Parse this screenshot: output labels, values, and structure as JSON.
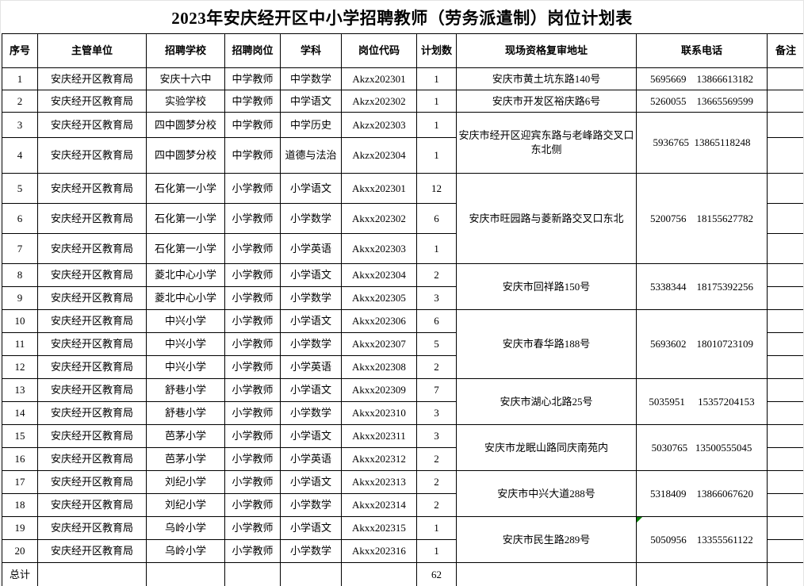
{
  "title": "2023年安庆经开区中小学招聘教师（劳务派遣制）岗位计划表",
  "colors": {
    "border": "#000000",
    "background": "#ffffff",
    "text": "#000000",
    "comment_marker": "#008000"
  },
  "table": {
    "headers": [
      "序号",
      "主管单位",
      "招聘学校",
      "招聘岗位",
      "学科",
      "岗位代码",
      "计划数",
      "现场资格复审地址",
      "联系电话",
      "备注"
    ],
    "rows": [
      {
        "no": "1",
        "unit": "安庆经开区教育局",
        "school": "安庆十六中",
        "post": "中学教师",
        "subject": "中学数学",
        "code": "Akzx202301",
        "count": "1",
        "remark": ""
      },
      {
        "no": "2",
        "unit": "安庆经开区教育局",
        "school": "实验学校",
        "post": "中学教师",
        "subject": "中学语文",
        "code": "Akzx202302",
        "count": "1",
        "remark": ""
      },
      {
        "no": "3",
        "unit": "安庆经开区教育局",
        "school": "四中圆梦分校",
        "post": "中学教师",
        "subject": "中学历史",
        "code": "Akzx202303",
        "count": "1",
        "remark": ""
      },
      {
        "no": "4",
        "unit": "安庆经开区教育局",
        "school": "四中圆梦分校",
        "post": "中学教师",
        "subject": "道德与法治",
        "code": "Akzx202304",
        "count": "1",
        "remark": ""
      },
      {
        "no": "5",
        "unit": "安庆经开区教育局",
        "school": "石化第一小学",
        "post": "小学教师",
        "subject": "小学语文",
        "code": "Akxx202301",
        "count": "12",
        "remark": ""
      },
      {
        "no": "6",
        "unit": "安庆经开区教育局",
        "school": "石化第一小学",
        "post": "小学教师",
        "subject": "小学数学",
        "code": "Akxx202302",
        "count": "6",
        "remark": ""
      },
      {
        "no": "7",
        "unit": "安庆经开区教育局",
        "school": "石化第一小学",
        "post": "小学教师",
        "subject": "小学英语",
        "code": "Akxx202303",
        "count": "1",
        "remark": ""
      },
      {
        "no": "8",
        "unit": "安庆经开区教育局",
        "school": "菱北中心小学",
        "post": "小学教师",
        "subject": "小学语文",
        "code": "Akxx202304",
        "count": "2",
        "remark": ""
      },
      {
        "no": "9",
        "unit": "安庆经开区教育局",
        "school": "菱北中心小学",
        "post": "小学教师",
        "subject": "小学数学",
        "code": "Akxx202305",
        "count": "3",
        "remark": ""
      },
      {
        "no": "10",
        "unit": "安庆经开区教育局",
        "school": "中兴小学",
        "post": "小学教师",
        "subject": "小学语文",
        "code": "Akxx202306",
        "count": "6",
        "remark": ""
      },
      {
        "no": "11",
        "unit": "安庆经开区教育局",
        "school": "中兴小学",
        "post": "小学教师",
        "subject": "小学数学",
        "code": "Akxx202307",
        "count": "5",
        "remark": ""
      },
      {
        "no": "12",
        "unit": "安庆经开区教育局",
        "school": "中兴小学",
        "post": "小学教师",
        "subject": "小学英语",
        "code": "Akxx202308",
        "count": "2",
        "remark": ""
      },
      {
        "no": "13",
        "unit": "安庆经开区教育局",
        "school": "舒巷小学",
        "post": "小学教师",
        "subject": "小学语文",
        "code": "Akxx202309",
        "count": "7",
        "remark": ""
      },
      {
        "no": "14",
        "unit": "安庆经开区教育局",
        "school": "舒巷小学",
        "post": "小学教师",
        "subject": "小学数学",
        "code": "Akxx202310",
        "count": "3",
        "remark": ""
      },
      {
        "no": "15",
        "unit": "安庆经开区教育局",
        "school": "芭茅小学",
        "post": "小学教师",
        "subject": "小学语文",
        "code": "Akxx202311",
        "count": "3",
        "remark": ""
      },
      {
        "no": "16",
        "unit": "安庆经开区教育局",
        "school": "芭茅小学",
        "post": "小学教师",
        "subject": "小学英语",
        "code": "Akxx202312",
        "count": "2",
        "remark": ""
      },
      {
        "no": "17",
        "unit": "安庆经开区教育局",
        "school": "刘纪小学",
        "post": "小学教师",
        "subject": "小学语文",
        "code": "Akxx202313",
        "count": "2",
        "remark": ""
      },
      {
        "no": "18",
        "unit": "安庆经开区教育局",
        "school": "刘纪小学",
        "post": "小学教师",
        "subject": "小学数学",
        "code": "Akxx202314",
        "count": "2",
        "remark": ""
      },
      {
        "no": "19",
        "unit": "安庆经开区教育局",
        "school": "乌岭小学",
        "post": "小学教师",
        "subject": "小学语文",
        "code": "Akxx202315",
        "count": "1",
        "remark": ""
      },
      {
        "no": "20",
        "unit": "安庆经开区教育局",
        "school": "乌岭小学",
        "post": "小学教师",
        "subject": "小学数学",
        "code": "Akxx202316",
        "count": "1",
        "remark": ""
      }
    ],
    "merged_groups": [
      {
        "start": 0,
        "span": 1,
        "address": "安庆市黄土坑东路140号",
        "phone": "5695669    13866613182"
      },
      {
        "start": 1,
        "span": 1,
        "address": "安庆市开发区裕庆路6号",
        "phone": "5260055    13665569599"
      },
      {
        "start": 2,
        "span": 2,
        "address": "安庆市经开区迎宾东路与老峰路交叉口东北侧",
        "phone": "5936765  13865118248"
      },
      {
        "start": 4,
        "span": 3,
        "address": "安庆市旺园路与菱新路交叉口东北",
        "phone": "5200756    18155627782"
      },
      {
        "start": 7,
        "span": 2,
        "address": "安庆市回祥路150号",
        "phone": "5338344    18175392256"
      },
      {
        "start": 9,
        "span": 3,
        "address": "安庆市春华路188号",
        "phone": "5693602    18010723109"
      },
      {
        "start": 12,
        "span": 2,
        "address": "安庆市湖心北路25号",
        "phone": "5035951     15357204153"
      },
      {
        "start": 14,
        "span": 2,
        "address": "安庆市龙眠山路同庆南苑内",
        "phone": "5030765   13500555045"
      },
      {
        "start": 16,
        "span": 2,
        "address": "安庆市中兴大道288号",
        "phone": "5318409    13866067620"
      },
      {
        "start": 18,
        "span": 2,
        "address": "安庆市民生路289号",
        "phone": "5050956    13355561122",
        "comment_marker": true
      }
    ],
    "footer": {
      "label": "总计",
      "total": "62"
    }
  }
}
